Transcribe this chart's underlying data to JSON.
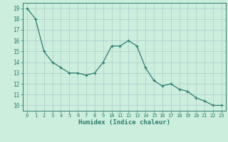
{
  "x": [
    0,
    1,
    2,
    3,
    4,
    5,
    6,
    7,
    8,
    9,
    10,
    11,
    12,
    13,
    14,
    15,
    16,
    17,
    18,
    19,
    20,
    21,
    22,
    23
  ],
  "y": [
    19.0,
    18.0,
    15.0,
    14.0,
    13.5,
    13.0,
    13.0,
    12.8,
    13.0,
    14.0,
    15.5,
    15.5,
    16.0,
    15.5,
    13.5,
    12.3,
    11.8,
    12.0,
    11.5,
    11.3,
    10.7,
    10.4,
    10.0,
    10.0
  ],
  "xlabel": "Humidex (Indice chaleur)",
  "line_color": "#2e7d6e",
  "marker_color": "#2e7d6e",
  "bg_color": "#cceedd",
  "grid_color": "#aacccc",
  "ylim": [
    9.5,
    19.5
  ],
  "xlim": [
    -0.5,
    23.5
  ],
  "yticks": [
    10,
    11,
    12,
    13,
    14,
    15,
    16,
    17,
    18,
    19
  ],
  "xticks": [
    0,
    1,
    2,
    3,
    4,
    5,
    6,
    7,
    8,
    9,
    10,
    11,
    12,
    13,
    14,
    15,
    16,
    17,
    18,
    19,
    20,
    21,
    22,
    23
  ]
}
